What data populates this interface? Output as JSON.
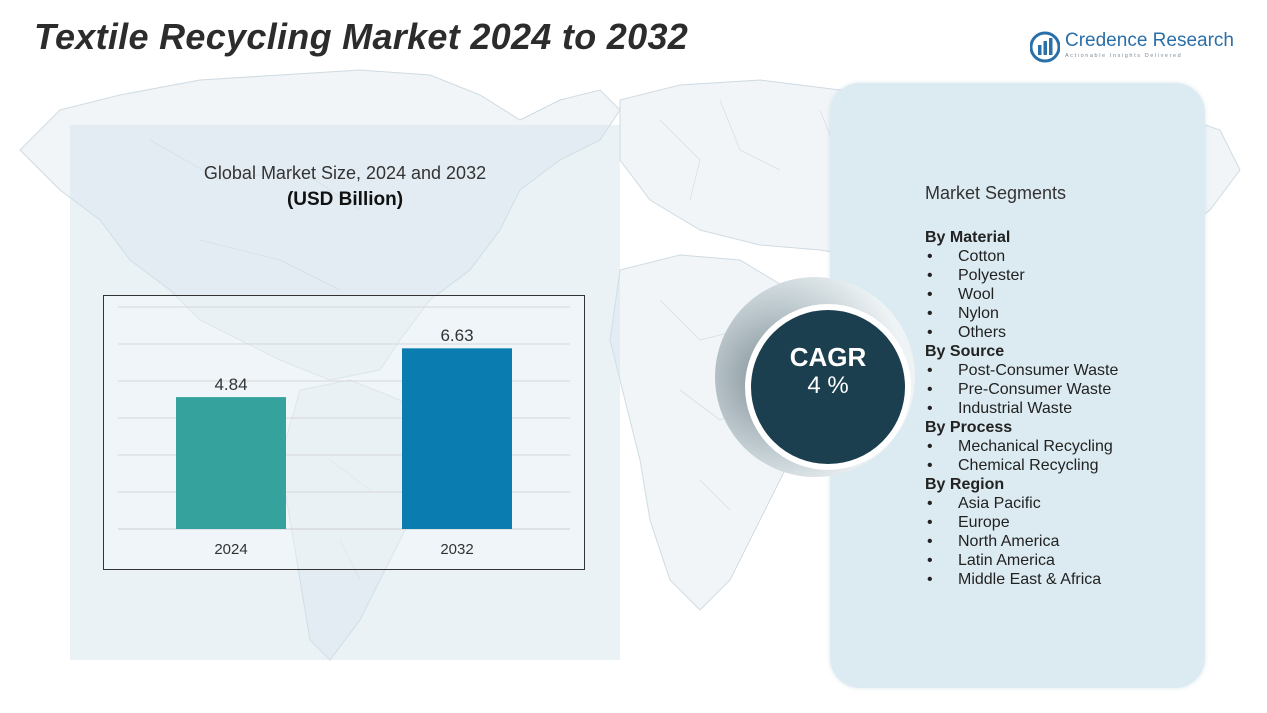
{
  "title": "Textile Recycling Market 2024 to 2032",
  "logo": {
    "name_part1": "Credence",
    "name_part2": "Research",
    "tagline": "Actionable Insights Delivered",
    "color": "#2a6fa8"
  },
  "chart_panel": {
    "title": "Global Market Size, 2024 and 2032",
    "unit": "(USD Billion)"
  },
  "chart_data": {
    "type": "bar",
    "categories": [
      "2024",
      "2032"
    ],
    "values": [
      4.84,
      6.63
    ],
    "value_labels": [
      "4.84",
      "6.63"
    ],
    "colors": [
      "#35a29e",
      "#0a7cb0"
    ],
    "title": "Global Market Size, 2024 and 2032",
    "ylabel": "(USD Billion)",
    "ylim": [
      0,
      8
    ],
    "grid": true,
    "legend": "none"
  },
  "cagr": {
    "label": "CAGR",
    "value": "4 %"
  },
  "segments": {
    "title": "Market Segments",
    "groups": [
      {
        "heading": "By Material",
        "items": [
          "Cotton",
          "Polyester",
          "Wool",
          "Nylon",
          "Others"
        ]
      },
      {
        "heading": "By  Source",
        "items": [
          "Post-Consumer Waste",
          "Pre-Consumer Waste",
          "Industrial Waste"
        ]
      },
      {
        "heading": "By Process",
        "items": [
          "Mechanical Recycling",
          "Chemical Recycling"
        ]
      },
      {
        "heading": "By Region",
        "items": [
          "Asia Pacific",
          "Europe",
          "North America",
          "Latin America",
          "Middle East & Africa"
        ]
      }
    ]
  },
  "colors": {
    "panel_left": "#d0e2ec",
    "panel_right": "#dcebf2",
    "cagr_circle": "#1c3f4f"
  },
  "icons": {
    "logo": "credence-logo-icon",
    "background": "world-map"
  }
}
